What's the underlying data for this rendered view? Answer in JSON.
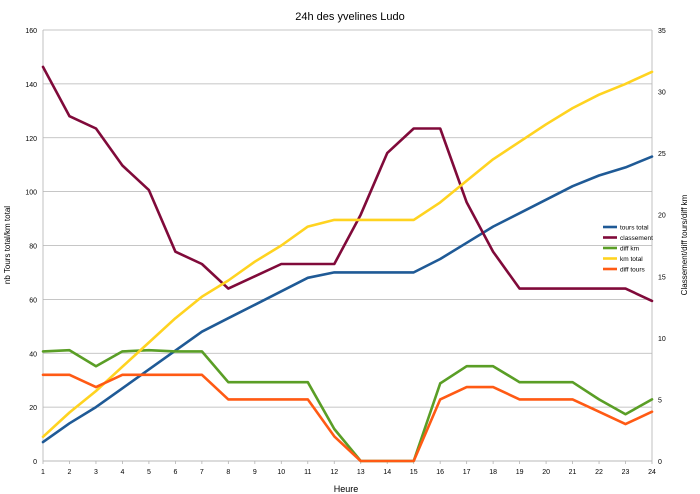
{
  "chart_data": {
    "type": "line",
    "title": "24h des yvelines Ludo",
    "xlabel": "Heure",
    "ylabel_left": "nb Tours total/km total",
    "ylabel_right": "Classement/diff tours/diff km",
    "x": [
      1,
      2,
      3,
      4,
      5,
      6,
      7,
      8,
      9,
      10,
      11,
      12,
      13,
      14,
      15,
      16,
      17,
      18,
      19,
      20,
      21,
      22,
      23,
      24
    ],
    "ylim_left": [
      0,
      160
    ],
    "yticks_left": [
      0,
      20,
      40,
      60,
      80,
      100,
      120,
      140,
      160
    ],
    "ylim_right": [
      0,
      35
    ],
    "yticks_right": [
      0,
      5,
      10,
      15,
      20,
      25,
      30,
      35
    ],
    "grid": true,
    "legend_position": "right",
    "series": [
      {
        "name": "tours total",
        "axis": "left",
        "color": "#1f5a96",
        "values": [
          7,
          14,
          20,
          27,
          34,
          41,
          48,
          53,
          58,
          63,
          68,
          70,
          70,
          70,
          70,
          75,
          81,
          87,
          92,
          97,
          102,
          106,
          109,
          113
        ]
      },
      {
        "name": "classement",
        "axis": "right",
        "color": "#800a3a",
        "values": [
          32,
          28,
          27,
          24,
          22,
          17,
          16,
          14,
          15,
          16,
          16,
          16,
          20,
          25,
          27,
          27,
          21,
          17,
          14,
          14,
          14,
          14,
          14,
          13
        ]
      },
      {
        "name": "diff km",
        "axis": "right",
        "color": "#5a9e26",
        "values": [
          8.9,
          9,
          7.7,
          8.9,
          9,
          8.9,
          8.9,
          6.4,
          6.4,
          6.4,
          6.4,
          2.6,
          0,
          0,
          0,
          6.3,
          7.7,
          7.7,
          6.4,
          6.4,
          6.4,
          5,
          3.8,
          5
        ]
      },
      {
        "name": "km total",
        "axis": "left",
        "color": "#ffd320",
        "values": [
          9,
          18,
          26,
          35,
          44,
          53,
          61,
          67,
          74,
          80,
          87,
          89.5,
          89.5,
          89.5,
          89.5,
          96,
          104,
          112,
          118.5,
          125,
          131,
          136,
          140,
          144.5
        ]
      },
      {
        "name": "diff tours",
        "axis": "right",
        "color": "#ff5a14",
        "values": [
          7,
          7,
          6,
          7,
          7,
          7,
          7,
          5,
          5,
          5,
          5,
          2,
          0,
          0,
          0,
          5,
          6,
          6,
          5,
          5,
          5,
          4,
          3,
          4
        ]
      }
    ]
  }
}
